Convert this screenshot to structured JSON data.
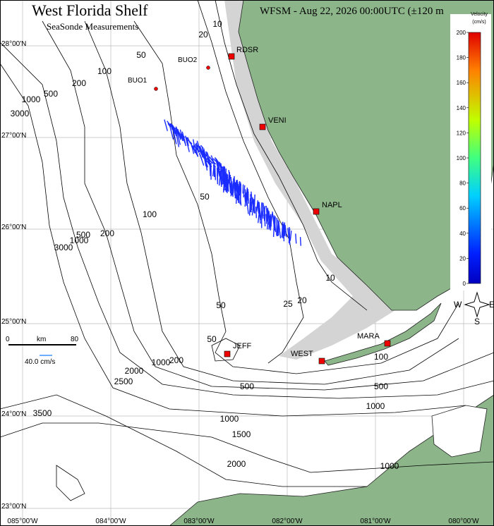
{
  "header": {
    "title": "West Florida Shelf",
    "subtitle": "SeaSonde Measurements",
    "run": "WFSM - Aug 22, 2026 00:00UTC (±120 m"
  },
  "grid": {
    "latitudes": [
      "28°00'N",
      "27°00'N",
      "26°00'N",
      "25°00'N",
      "24°00'N",
      "23°00'N"
    ],
    "longitudes": [
      "085°00'W",
      "084°00'W",
      "083°00'W",
      "082°00'W",
      "081°00'W",
      "080°00'W"
    ]
  },
  "stations": [
    "RDSR",
    "VENI",
    "NAPL",
    "JEFF",
    "WEST",
    "MARA"
  ],
  "buoys": [
    "BUO2",
    "BUO1"
  ],
  "contour_labels": [
    "10",
    "20",
    "50",
    "100",
    "200",
    "500",
    "1000",
    "3000",
    "50",
    "100",
    "200",
    "1000",
    "3000",
    "500",
    "50",
    "10",
    "25",
    "20",
    "50",
    "200",
    "1000",
    "500",
    "500",
    "100",
    "1000",
    "2000",
    "2500",
    "3500",
    "1000",
    "1500",
    "2000",
    "1000"
  ],
  "colorbar": {
    "title": "Velocity",
    "unit": "(cm/s)",
    "ticks": [
      "0",
      "20",
      "40",
      "60",
      "80",
      "100",
      "120",
      "140",
      "160",
      "180",
      "200"
    ]
  },
  "scale": {
    "start": "0",
    "unit": "km",
    "end": "80",
    "vector": "40.0 cm/s"
  },
  "compass": {
    "west": "W",
    "east": "E",
    "south": "S"
  }
}
